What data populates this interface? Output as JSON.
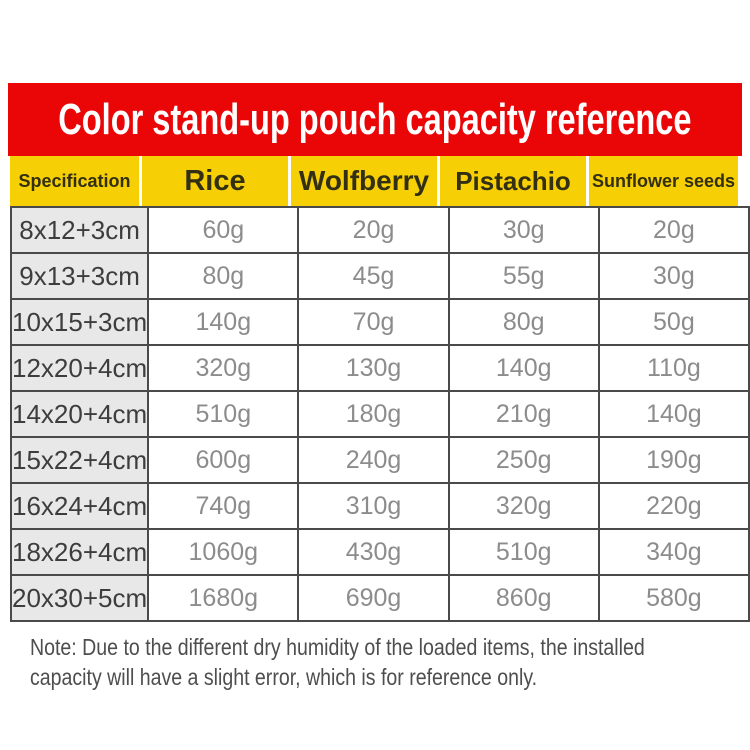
{
  "banner": {
    "title": "Color stand-up pouch capacity reference",
    "bg_color": "#ea0507",
    "text_color": "#ffffff"
  },
  "table": {
    "header_bg_color": "#f6cf04",
    "spec_column_bg_color": "#e8e8e8",
    "border_color": "#4a4a4a",
    "value_text_color": "#8c8c8c",
    "columns": [
      "Specification",
      "Rice",
      "Wolfberry",
      "Pistachio",
      "Sunflower seeds"
    ],
    "rows": [
      {
        "spec": "8x12+3cm",
        "values": [
          "60g",
          "20g",
          "30g",
          "20g"
        ]
      },
      {
        "spec": "9x13+3cm",
        "values": [
          "80g",
          "45g",
          "55g",
          "30g"
        ]
      },
      {
        "spec": "10x15+3cm",
        "values": [
          "140g",
          "70g",
          "80g",
          "50g"
        ]
      },
      {
        "spec": "12x20+4cm",
        "values": [
          "320g",
          "130g",
          "140g",
          "110g"
        ]
      },
      {
        "spec": "14x20+4cm",
        "values": [
          "510g",
          "180g",
          "210g",
          "140g"
        ]
      },
      {
        "spec": "15x22+4cm",
        "values": [
          "600g",
          "240g",
          "250g",
          "190g"
        ]
      },
      {
        "spec": "16x24+4cm",
        "values": [
          "740g",
          "310g",
          "320g",
          "220g"
        ]
      },
      {
        "spec": "18x26+4cm",
        "values": [
          "1060g",
          "430g",
          "510g",
          "340g"
        ]
      },
      {
        "spec": "20x30+5cm",
        "values": [
          "1680g",
          "690g",
          "860g",
          "580g"
        ]
      }
    ]
  },
  "note": {
    "line1": "Note: Due to the different dry humidity of the loaded items, the installed",
    "line2": "capacity will have a slight error, which is for reference only."
  }
}
